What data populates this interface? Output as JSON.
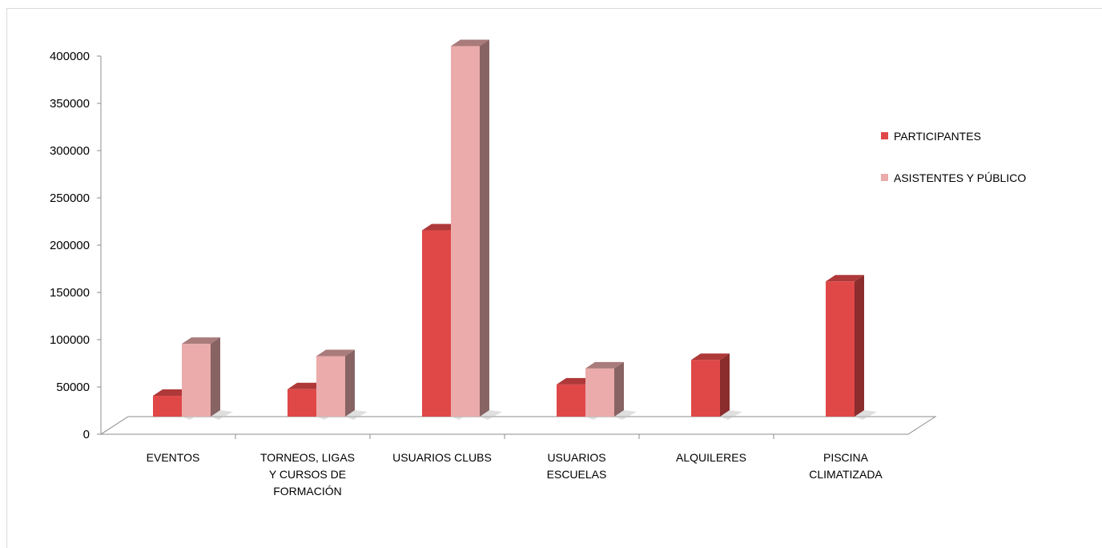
{
  "chart_data": {
    "type": "bar",
    "three_d": true,
    "categories": [
      [
        "EVENTOS"
      ],
      [
        "TORNEOS, LIGAS",
        "Y CURSOS DE",
        "FORMACIÓN"
      ],
      [
        "USUARIOS CLUBS"
      ],
      [
        "USUARIOS",
        "ESCUELAS"
      ],
      [
        "ALQUILERES"
      ],
      [
        "PISCINA",
        "CLIMATIZADA"
      ]
    ],
    "series": [
      {
        "name": "PARTICIPANTES",
        "color": "#e04848",
        "values": [
          22000,
          29000,
          197000,
          34000,
          60000,
          143000
        ]
      },
      {
        "name": "ASISTENTES Y PÚBLICO",
        "color": "#ebabab",
        "values": [
          77000,
          64000,
          392000,
          51000,
          null,
          null
        ]
      }
    ],
    "y_ticks": [
      "0",
      "50000",
      "100000",
      "150000",
      "200000",
      "250000",
      "300000",
      "350000",
      "400000"
    ],
    "ylim": [
      0,
      400000
    ],
    "grid": false,
    "legend_position": "right"
  }
}
